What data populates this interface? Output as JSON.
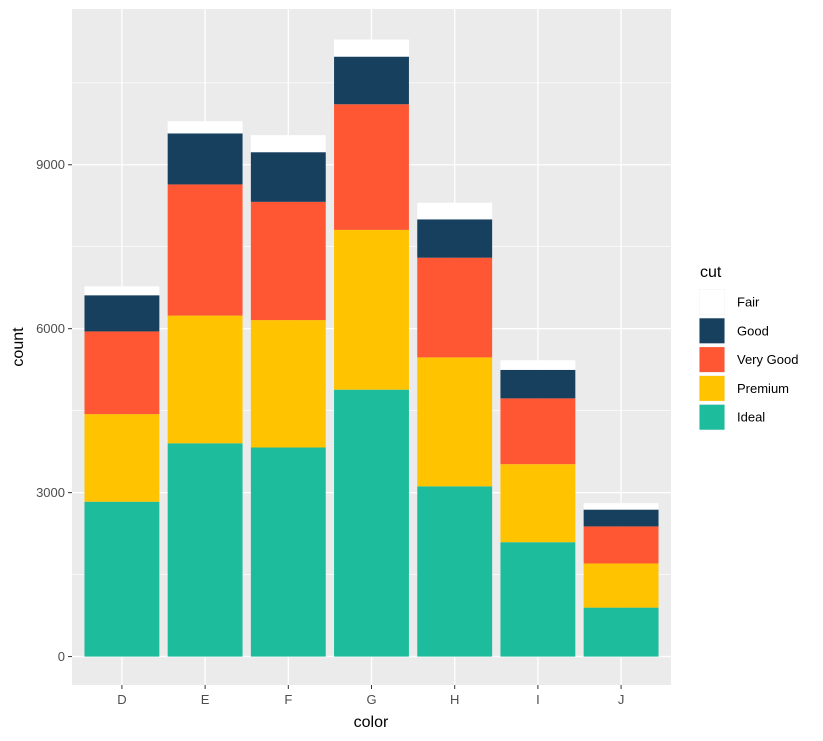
{
  "chart_data": {
    "type": "bar",
    "stacked": true,
    "title": "",
    "xlabel": "color",
    "ylabel": "count",
    "categories": [
      "D",
      "E",
      "F",
      "G",
      "H",
      "I",
      "J"
    ],
    "series": [
      {
        "name": "Fair",
        "color": "#FFFFFF",
        "values": [
          163,
          224,
          312,
          314,
          303,
          175,
          119
        ]
      },
      {
        "name": "Good",
        "color": "#17405F",
        "values": [
          662,
          933,
          909,
          871,
          702,
          522,
          307
        ]
      },
      {
        "name": "Very Good",
        "color": "#FF5733",
        "values": [
          1513,
          2400,
          2164,
          2299,
          1824,
          1204,
          678
        ]
      },
      {
        "name": "Premium",
        "color": "#FFC300",
        "values": [
          1603,
          2337,
          2331,
          2924,
          2360,
          1428,
          808
        ]
      },
      {
        "name": "Ideal",
        "color": "#1CBC9C",
        "values": [
          2834,
          3903,
          3826,
          4884,
          3115,
          2093,
          896
        ]
      }
    ],
    "stack_order_bottom_to_top": [
      "Ideal",
      "Premium",
      "Very Good",
      "Good",
      "Fair"
    ],
    "ylim": [
      -520,
      11850
    ],
    "yticks": [
      0,
      3000,
      6000,
      9000
    ],
    "ytick_labels": [
      "0",
      "3000",
      "6000",
      "9000"
    ],
    "grid": true,
    "legend": {
      "title": "cut",
      "position": "right",
      "order": [
        "Fair",
        "Good",
        "Very Good",
        "Premium",
        "Ideal"
      ]
    }
  }
}
